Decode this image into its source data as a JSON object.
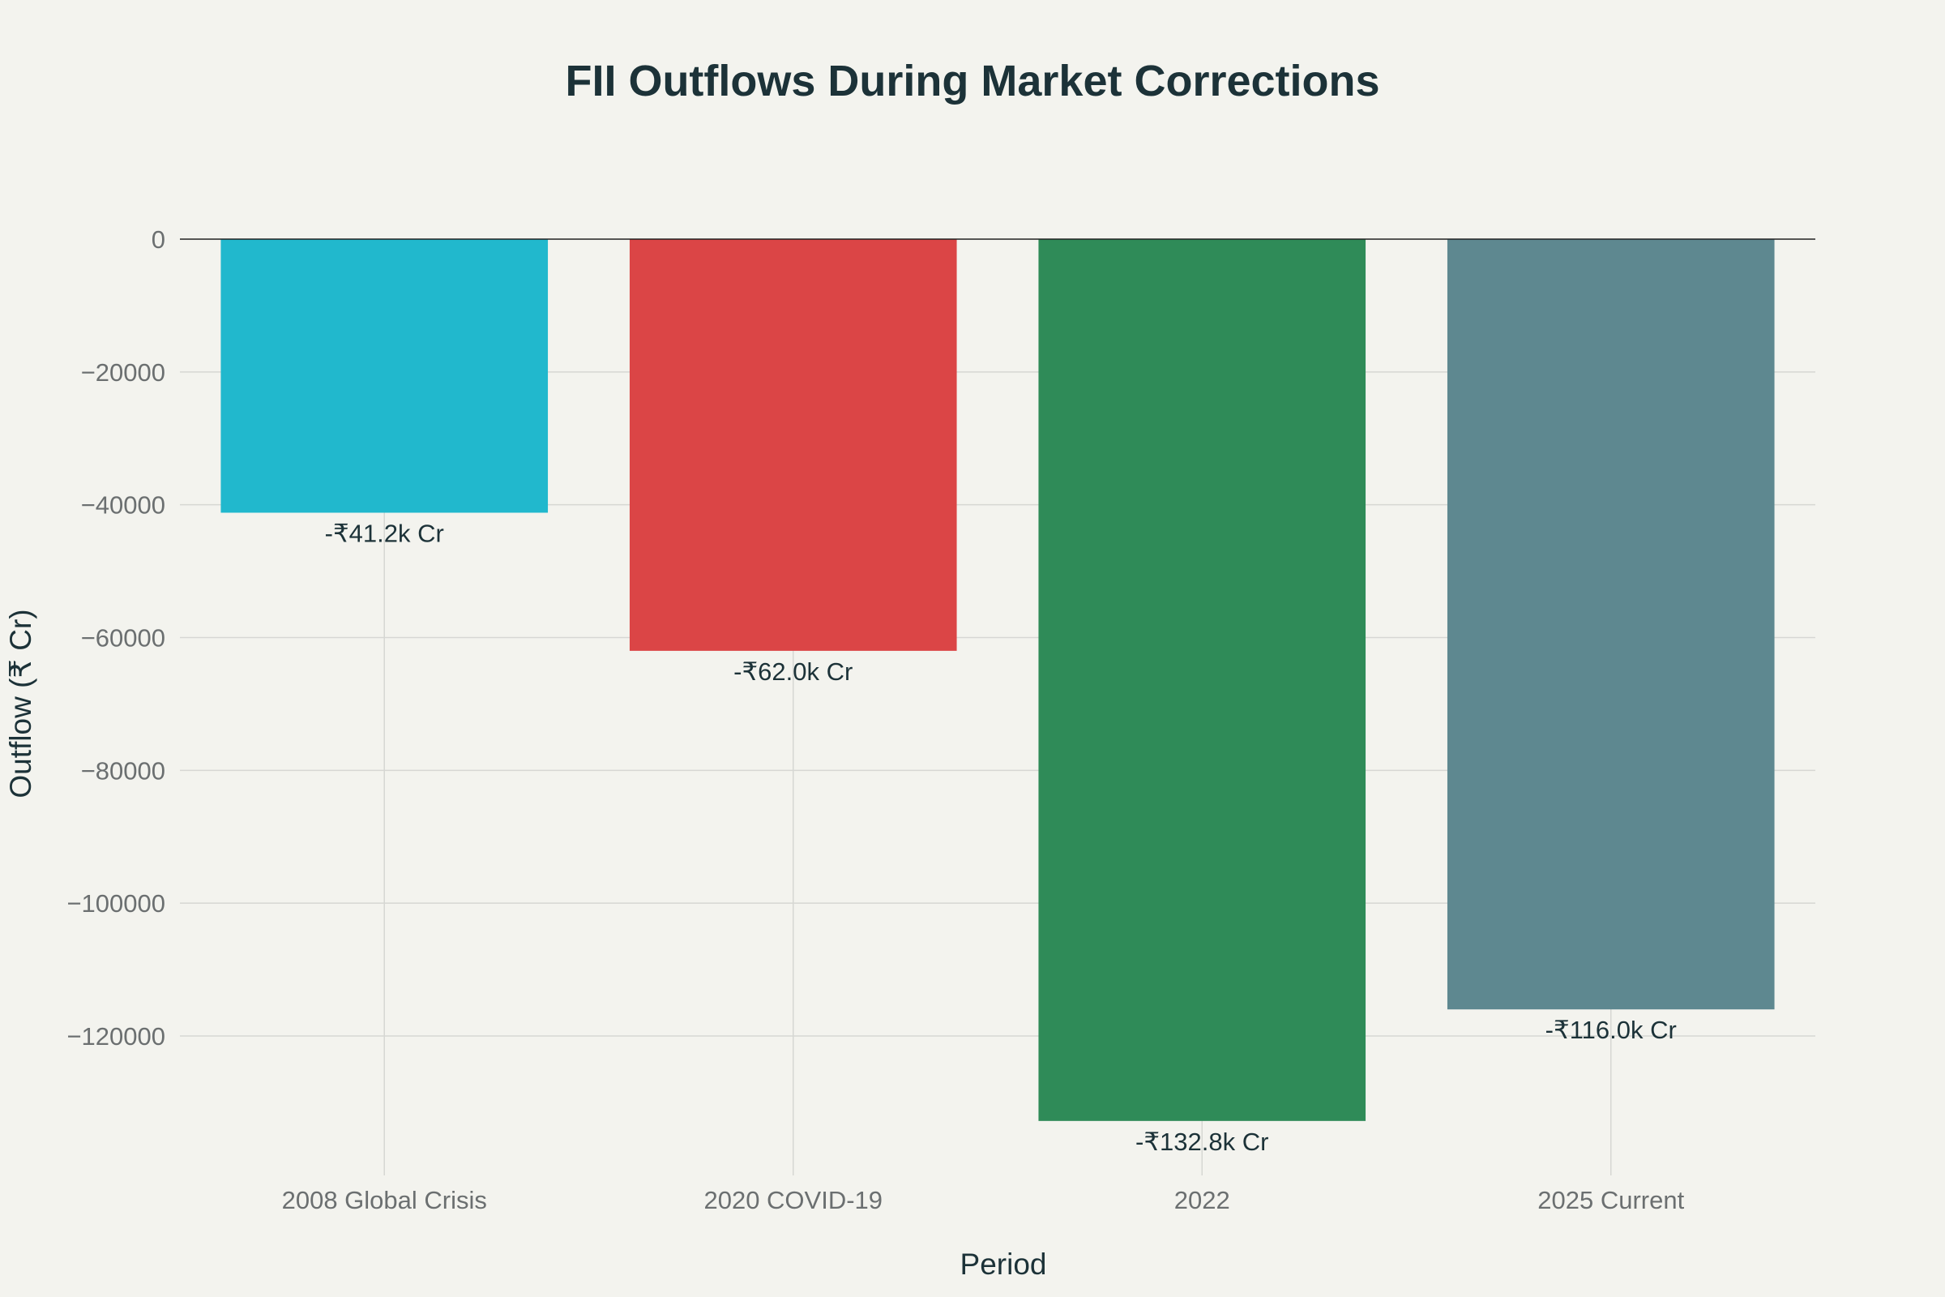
{
  "chart_data": {
    "type": "bar",
    "title": "FII Outflows During Market Corrections",
    "xlabel": "Period",
    "ylabel": "Outflow (₹ Cr)",
    "categories": [
      "2008 Global Crisis",
      "2020 COVID-19",
      "2022",
      "2025 Current"
    ],
    "values": [
      -41200,
      -62000,
      -132800,
      -116000
    ],
    "data_labels": [
      "-₹41.2k Cr",
      "-₹62.0k Cr",
      "-₹132.8k Cr",
      "-₹116.0k Cr"
    ],
    "colors": [
      "#21b8cd",
      "#db4546",
      "#2f8b58",
      "#5e8890"
    ],
    "ylim": [
      -141000,
      0
    ],
    "yticks": [
      0,
      -20000,
      -40000,
      -60000,
      -80000,
      -100000,
      -120000
    ],
    "ytick_labels": [
      "0",
      "−20000",
      "−40000",
      "−60000",
      "−80000",
      "−100000",
      "−120000"
    ],
    "grid": true,
    "legend": false
  }
}
